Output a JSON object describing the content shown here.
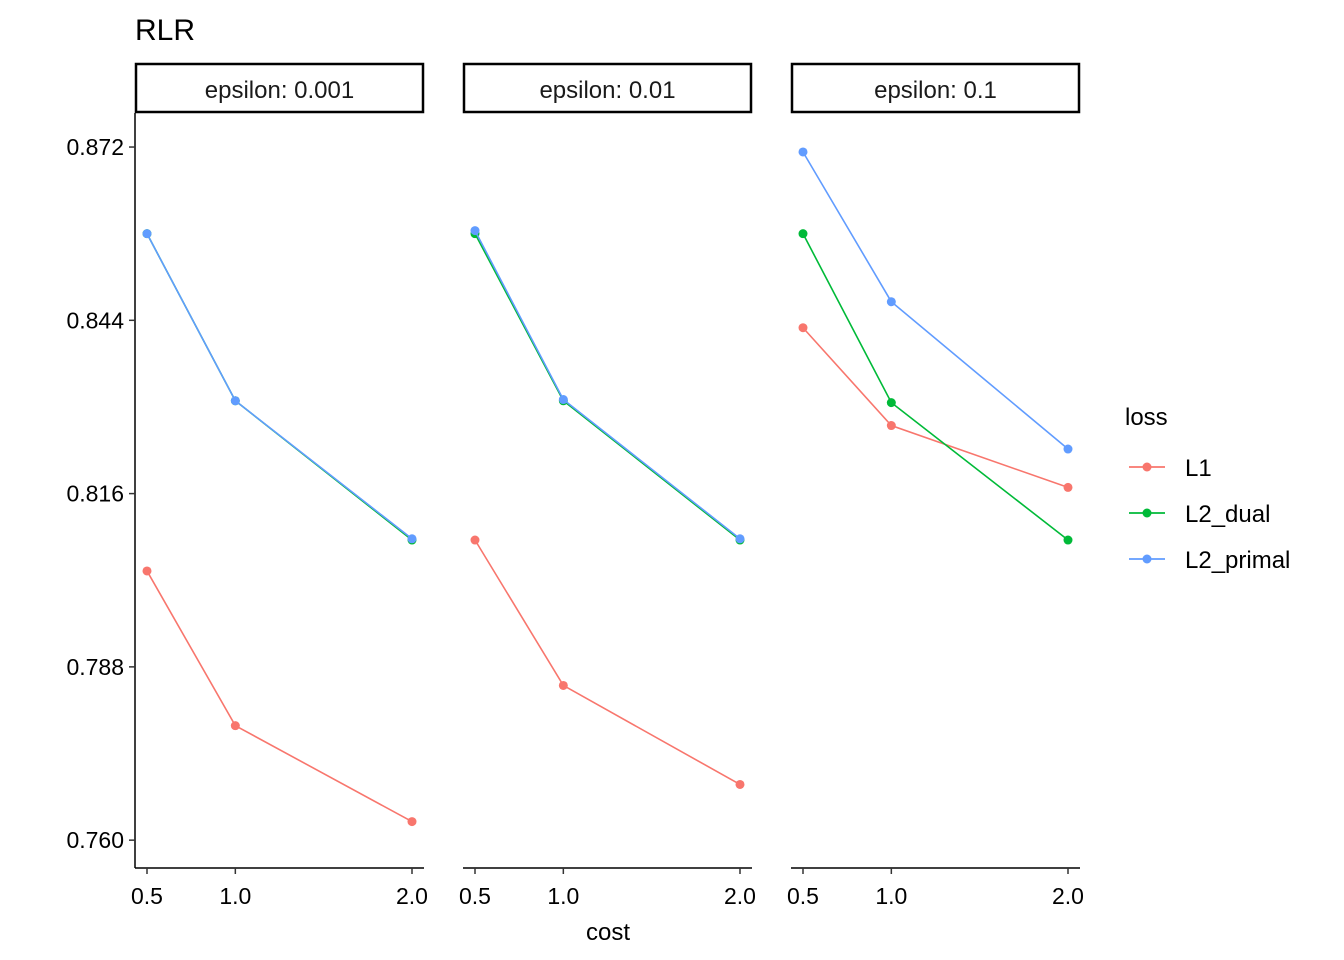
{
  "chart_data": {
    "type": "line",
    "title": "RLR",
    "xlabel": "cost",
    "ylabel": "",
    "ylim": [
      0.7555,
      0.8775
    ],
    "x_ticks": [
      "0.5",
      "1.0",
      "2.0"
    ],
    "y_ticks": [
      "0.760",
      "0.788",
      "0.816",
      "0.844",
      "0.872"
    ],
    "legend": {
      "title": "loss",
      "position": "right",
      "entries": [
        "L1",
        "L2_dual",
        "L2_primal"
      ]
    },
    "colors": {
      "L1": "#F8766D",
      "L2_dual": "#00BA38",
      "L2_primal": "#619CFF"
    },
    "panels": [
      {
        "strip": "epsilon: 0.001",
        "series": [
          {
            "name": "L1",
            "x": [
              0.5,
              1.0,
              2.0
            ],
            "y": [
              0.8035,
              0.7785,
              0.763
            ]
          },
          {
            "name": "L2_dual",
            "x": [
              0.5,
              1.0,
              2.0
            ],
            "y": [
              0.858,
              0.831,
              0.8085
            ]
          },
          {
            "name": "L2_primal",
            "x": [
              0.5,
              1.0,
              2.0
            ],
            "y": [
              0.858,
              0.831,
              0.8087
            ]
          }
        ]
      },
      {
        "strip": "epsilon: 0.01",
        "series": [
          {
            "name": "L1",
            "x": [
              0.5,
              1.0,
              2.0
            ],
            "y": [
              0.8085,
              0.785,
              0.769
            ]
          },
          {
            "name": "L2_dual",
            "x": [
              0.5,
              1.0,
              2.0
            ],
            "y": [
              0.858,
              0.831,
              0.8085
            ]
          },
          {
            "name": "L2_primal",
            "x": [
              0.5,
              1.0,
              2.0
            ],
            "y": [
              0.8585,
              0.8312,
              0.8087
            ]
          }
        ]
      },
      {
        "strip": "epsilon: 0.1",
        "series": [
          {
            "name": "L1",
            "x": [
              0.5,
              1.0,
              2.0
            ],
            "y": [
              0.8428,
              0.827,
              0.817
            ]
          },
          {
            "name": "L2_dual",
            "x": [
              0.5,
              1.0,
              2.0
            ],
            "y": [
              0.858,
              0.8307,
              0.8085
            ]
          },
          {
            "name": "L2_primal",
            "x": [
              0.5,
              1.0,
              2.0
            ],
            "y": [
              0.8712,
              0.847,
              0.8232
            ]
          }
        ]
      }
    ]
  }
}
